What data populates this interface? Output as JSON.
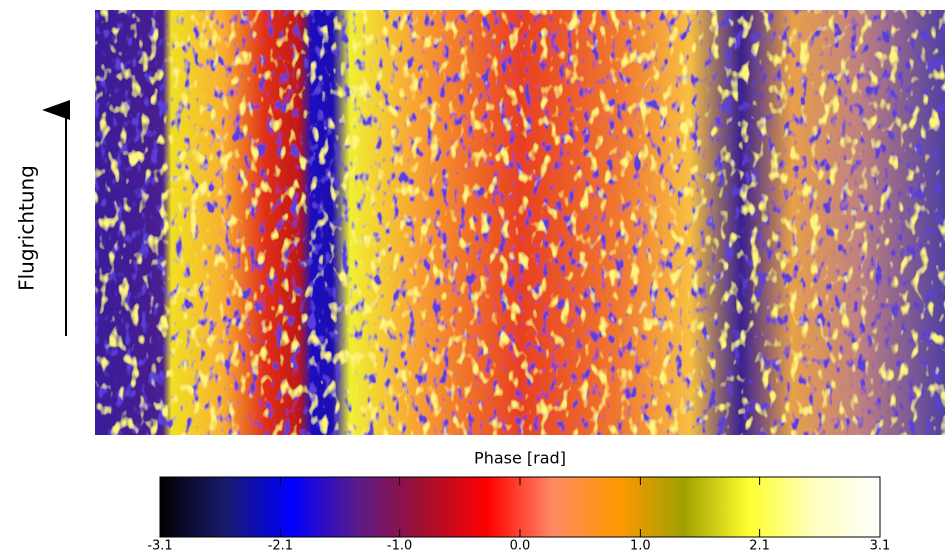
{
  "chart_data": {
    "type": "heatmap",
    "y_label": "Flugrichtung",
    "colorbar": {
      "title": "Phase [rad]",
      "xlim": [
        -3.14,
        3.14
      ],
      "xticks": [
        {
          "value": -3.14,
          "label": "-3.1"
        },
        {
          "value": -2.09,
          "label": "-2.1"
        },
        {
          "value": -1.05,
          "label": "-1.0"
        },
        {
          "value": 0,
          "label": "0.0"
        },
        {
          "value": 1.05,
          "label": "1.0"
        },
        {
          "value": 2.09,
          "label": "2.1"
        },
        {
          "value": 3.14,
          "label": "3.1"
        }
      ],
      "colormap": [
        "#000000",
        "#1a1a6e",
        "#0000ff",
        "#5a1a8c",
        "#a01030",
        "#ff0000",
        "#ff8a66",
        "#ff9900",
        "#a0a000",
        "#ffff30",
        "#ffffc0",
        "#ffffff"
      ]
    }
  }
}
